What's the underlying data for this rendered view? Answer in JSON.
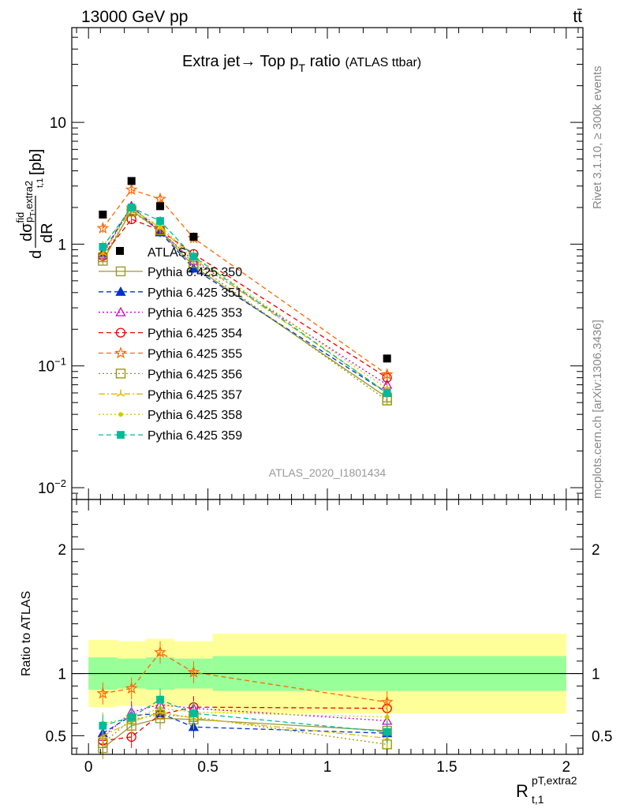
{
  "header": {
    "energy": "13000 GeV pp",
    "process": "tt̄",
    "side_rivet": "Rivet 3.1.10, ≥ 300k events",
    "side_mcplots": "mcplots.cern.ch [arXiv:1306.3436]",
    "analysis_id": "ATLAS_2020_I1801434"
  },
  "chart_data": {
    "type": "scatter",
    "title": "Extra jet→ Top p_T ratio",
    "title_main": "Extra jet→ Top p",
    "title_sub": "T",
    "title_suffix": " ratio",
    "title_note": "(ATLAS ttbar)",
    "ylabel_main": "dσ^fid/dR_{t,1}^{pT,extra2} [pb]",
    "ylabel_ratio": "Ratio to ATLAS",
    "xlabel": "R_{t,1}^{pT,extra2}",
    "xlabel_main": "R",
    "xlabel_sup": "pT,extra2",
    "xlabel_sub": "t,1",
    "ylabel_d1": "d",
    "ylabel_sigma": "dσ",
    "ylabel_fid": "fid",
    "ylabel_sub": "p",
    "ylabel_subsub": "T",
    "ylabel_sub2": ",extra2",
    "ylabel_t1": "t,1",
    "ylabel_dR": "dR",
    "ylabel_unit": "[pb]",
    "xlim": [
      -0.07,
      2.07
    ],
    "main_ylim": [
      0.008,
      60
    ],
    "main_yscale": "log",
    "ratio_ylim": [
      0.35,
      2.4
    ],
    "x_ticks": [
      0,
      0.5,
      1,
      1.5,
      2
    ],
    "x_tick_labels": [
      "0",
      "0.5",
      "1",
      "1.5",
      "2"
    ],
    "main_y_tick_labels": [
      {
        "value": 0.01,
        "base": "10",
        "exp": "−2"
      },
      {
        "value": 0.1,
        "base": "10",
        "exp": "−1"
      },
      {
        "value": 1,
        "base": "1",
        "exp": ""
      },
      {
        "value": 10,
        "base": "10",
        "exp": ""
      }
    ],
    "ratio_y_ticks": [
      0.5,
      1,
      2
    ],
    "ratio_y_tick_labels": [
      "0.5",
      "1",
      "2"
    ],
    "legend_placement": "middle-left",
    "x": [
      0.06,
      0.18,
      0.3,
      0.44,
      1.25
    ],
    "bin_edges": [
      0,
      0.12,
      0.24,
      0.36,
      0.52,
      2.0
    ],
    "data": {
      "name": "ATLAS",
      "values": [
        1.75,
        3.3,
        2.05,
        1.15,
        0.115
      ]
    },
    "uncertainty_bands": {
      "inner": [
        [
          0.87,
          1.13
        ],
        [
          0.88,
          1.12
        ],
        [
          0.87,
          1.13
        ],
        [
          0.88,
          1.12
        ],
        [
          0.86,
          1.14
        ]
      ],
      "outer": [
        [
          0.73,
          1.27
        ],
        [
          0.74,
          1.26
        ],
        [
          0.73,
          1.28
        ],
        [
          0.74,
          1.26
        ],
        [
          0.68,
          1.32
        ]
      ],
      "inner_color": "#99ff99",
      "outer_color": "#ffff99"
    },
    "series": [
      {
        "name": "Pythia 6.425 350",
        "color": "#999933",
        "marker": "square-open",
        "dash": "solid",
        "values": [
          0.73,
          1.9,
          1.28,
          0.66,
          0.055
        ],
        "ratio": [
          0.4,
          0.58,
          0.64,
          0.63,
          0.54
        ]
      },
      {
        "name": "Pythia 6.425 351",
        "color": "#0033cc",
        "marker": "triangle-filled",
        "dash": "dashed",
        "values": [
          0.85,
          2.05,
          1.25,
          0.63,
          0.06
        ],
        "ratio": [
          0.52,
          0.66,
          0.68,
          0.57,
          0.52
        ]
      },
      {
        "name": "Pythia 6.425 353",
        "color": "#cc00cc",
        "marker": "triangle-open",
        "dash": "dotted",
        "values": [
          0.82,
          2.05,
          1.28,
          0.73,
          0.07
        ],
        "ratio": [
          0.49,
          0.69,
          0.75,
          0.72,
          0.62
        ]
      },
      {
        "name": "Pythia 6.425 354",
        "color": "#ee0000",
        "marker": "circle-open",
        "dash": "dashed",
        "values": [
          0.8,
          1.6,
          1.3,
          0.83,
          0.08
        ],
        "ratio": [
          0.46,
          0.49,
          0.67,
          0.73,
          0.72
        ]
      },
      {
        "name": "Pythia 6.425 355",
        "color": "#ff6600",
        "marker": "star-open",
        "dash": "dashed",
        "values": [
          1.35,
          2.8,
          2.35,
          1.12,
          0.085
        ],
        "ratio": [
          0.84,
          0.88,
          1.17,
          1.01,
          0.77
        ]
      },
      {
        "name": "Pythia 6.425 356",
        "color": "#999900",
        "marker": "square-open",
        "dash": "dotted",
        "values": [
          0.78,
          1.85,
          1.3,
          0.7,
          0.052
        ],
        "ratio": [
          0.44,
          0.63,
          0.67,
          0.65,
          0.43
        ]
      },
      {
        "name": "Pythia 6.425 357",
        "color": "#ddbb00",
        "marker": "tri-star",
        "dash": "dashdot",
        "values": [
          0.84,
          1.95,
          1.36,
          0.76,
          0.06
        ],
        "ratio": [
          0.5,
          0.61,
          0.69,
          0.64,
          0.48
        ]
      },
      {
        "name": "Pythia 6.425 358",
        "color": "#cccc00",
        "marker": "dot",
        "dash": "dotted",
        "values": [
          0.97,
          1.95,
          1.4,
          0.8,
          0.065
        ],
        "ratio": [
          0.6,
          0.64,
          0.72,
          0.69,
          0.65
        ]
      },
      {
        "name": "Pythia 6.425 359",
        "color": "#00bb99",
        "marker": "square-filled",
        "dash": "dashed",
        "values": [
          0.95,
          2.0,
          1.55,
          0.79,
          0.06
        ],
        "ratio": [
          0.58,
          0.65,
          0.79,
          0.68,
          0.53
        ]
      }
    ]
  }
}
